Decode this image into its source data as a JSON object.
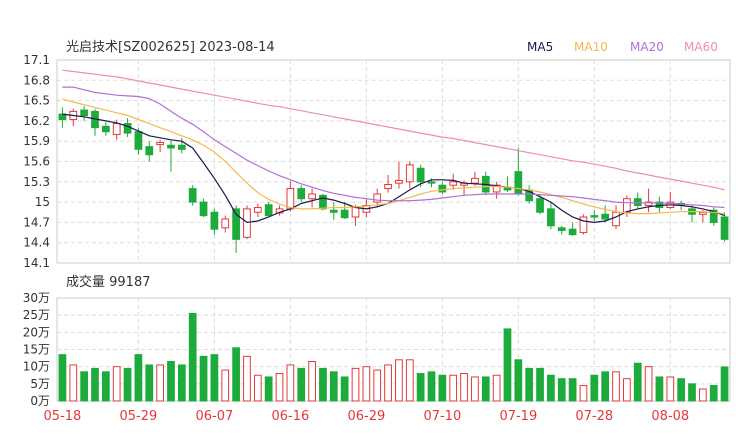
{
  "header": {
    "title": "光启技术[SZ002625] 2023-08-14",
    "legend": [
      {
        "label": "MA5",
        "color": "#1a1a4e"
      },
      {
        "label": "MA10",
        "color": "#f5b94e"
      },
      {
        "label": "MA20",
        "color": "#b06fd6"
      },
      {
        "label": "MA60",
        "color": "#ec8cb9"
      }
    ]
  },
  "colors": {
    "up": "#e23a3a",
    "down": "#1dab3b",
    "grid": "#dddddd",
    "axis_text": "#333333",
    "xaxis_text": "#e23a3a"
  },
  "volume_panel": {
    "label": "成交量 99187"
  },
  "chart_data": [
    {
      "type": "candlestick",
      "title": "光启技术[SZ002625] 2023-08-14",
      "ylim": [
        14.1,
        17.1
      ],
      "yticks": [
        "17.1",
        "16.8",
        "16.5",
        "16.2",
        "15.9",
        "15.6",
        "15.3",
        "15",
        "14.7",
        "14.4",
        "14.1"
      ],
      "ytick_values": [
        17.1,
        16.8,
        16.5,
        16.2,
        15.9,
        15.6,
        15.3,
        15.0,
        14.7,
        14.4,
        14.1
      ],
      "grid": true,
      "x_labels": [
        {
          "label": "05-18",
          "index": 0
        },
        {
          "label": "05-29",
          "index": 7
        },
        {
          "label": "06-07",
          "index": 14
        },
        {
          "label": "06-16",
          "index": 21
        },
        {
          "label": "06-29",
          "index": 28
        },
        {
          "label": "07-10",
          "index": 35
        },
        {
          "label": "07-19",
          "index": 42
        },
        {
          "label": "07-28",
          "index": 49
        },
        {
          "label": "08-08",
          "index": 56
        }
      ],
      "ohlc": [
        [
          16.3,
          16.4,
          16.1,
          16.22
        ],
        [
          16.22,
          16.38,
          16.12,
          16.34
        ],
        [
          16.36,
          16.42,
          16.2,
          16.28
        ],
        [
          16.34,
          16.38,
          15.98,
          16.1
        ],
        [
          16.12,
          16.18,
          15.98,
          16.04
        ],
        [
          16.0,
          16.22,
          15.92,
          16.16
        ],
        [
          16.16,
          16.24,
          15.96,
          16.02
        ],
        [
          16.04,
          16.1,
          15.7,
          15.78
        ],
        [
          15.82,
          15.9,
          15.6,
          15.7
        ],
        [
          15.85,
          15.92,
          15.74,
          15.88
        ],
        [
          15.84,
          15.9,
          15.45,
          15.8
        ],
        [
          15.84,
          15.95,
          15.72,
          15.78
        ],
        [
          15.2,
          15.25,
          14.95,
          15.0
        ],
        [
          15.0,
          15.05,
          14.78,
          14.8
        ],
        [
          14.85,
          14.9,
          14.52,
          14.6
        ],
        [
          14.62,
          14.8,
          14.55,
          14.75
        ],
        [
          14.9,
          14.95,
          14.25,
          14.45
        ],
        [
          14.48,
          14.95,
          14.45,
          14.9
        ],
        [
          14.85,
          14.98,
          14.78,
          14.92
        ],
        [
          14.96,
          15.0,
          14.8,
          14.8
        ],
        [
          14.84,
          14.95,
          14.8,
          14.9
        ],
        [
          14.9,
          15.3,
          14.86,
          15.2
        ],
        [
          15.2,
          15.25,
          15.0,
          15.05
        ],
        [
          15.05,
          15.2,
          14.92,
          15.12
        ],
        [
          15.1,
          15.12,
          14.88,
          14.9
        ],
        [
          14.88,
          15.0,
          14.74,
          14.85
        ],
        [
          14.88,
          15.0,
          14.75,
          14.77
        ],
        [
          14.78,
          14.96,
          14.65,
          14.92
        ],
        [
          14.85,
          15.05,
          14.78,
          14.95
        ],
        [
          15.0,
          15.2,
          14.92,
          15.12
        ],
        [
          15.2,
          15.4,
          15.14,
          15.26
        ],
        [
          15.28,
          15.6,
          15.2,
          15.32
        ],
        [
          15.3,
          15.6,
          15.2,
          15.55
        ],
        [
          15.5,
          15.55,
          15.22,
          15.3
        ],
        [
          15.3,
          15.35,
          15.22,
          15.28
        ],
        [
          15.25,
          15.3,
          15.12,
          15.15
        ],
        [
          15.25,
          15.42,
          15.18,
          15.3
        ],
        [
          15.25,
          15.32,
          15.1,
          15.28
        ],
        [
          15.28,
          15.45,
          15.24,
          15.35
        ],
        [
          15.38,
          15.45,
          15.1,
          15.15
        ],
        [
          15.15,
          15.3,
          15.05,
          15.25
        ],
        [
          15.22,
          15.38,
          15.15,
          15.18
        ],
        [
          15.45,
          15.8,
          15.1,
          15.12
        ],
        [
          15.18,
          15.25,
          14.98,
          15.02
        ],
        [
          15.05,
          15.1,
          14.82,
          14.85
        ],
        [
          14.9,
          15.0,
          14.6,
          14.65
        ],
        [
          14.62,
          14.65,
          14.52,
          14.58
        ],
        [
          14.6,
          14.7,
          14.5,
          14.52
        ],
        [
          14.55,
          14.82,
          14.52,
          14.78
        ],
        [
          14.8,
          14.88,
          14.72,
          14.78
        ],
        [
          14.82,
          14.95,
          14.7,
          14.75
        ],
        [
          14.65,
          14.95,
          14.6,
          14.85
        ],
        [
          14.85,
          15.1,
          14.78,
          15.05
        ],
        [
          15.05,
          15.14,
          14.9,
          14.95
        ],
        [
          14.95,
          15.2,
          14.85,
          15.0
        ],
        [
          15.0,
          15.08,
          14.85,
          14.92
        ],
        [
          14.92,
          15.15,
          14.9,
          15.0
        ],
        [
          14.98,
          15.02,
          14.88,
          14.95
        ],
        [
          14.9,
          14.95,
          14.7,
          14.82
        ],
        [
          14.82,
          14.88,
          14.7,
          14.85
        ],
        [
          14.88,
          14.92,
          14.65,
          14.7
        ],
        [
          14.78,
          14.85,
          14.42,
          14.45
        ]
      ],
      "ma": {
        "MA5": [
          16.3,
          16.28,
          16.26,
          16.23,
          16.2,
          16.17,
          16.12,
          16.05,
          15.98,
          15.95,
          15.92,
          15.9,
          15.8,
          15.58,
          15.35,
          15.1,
          14.82,
          14.7,
          14.72,
          14.78,
          14.85,
          14.9,
          14.98,
          15.02,
          15.06,
          15.03,
          14.98,
          14.92,
          14.9,
          14.93,
          14.98,
          15.08,
          15.18,
          15.27,
          15.33,
          15.33,
          15.32,
          15.28,
          15.27,
          15.26,
          15.24,
          15.22,
          15.2,
          15.16,
          15.08,
          15.0,
          14.88,
          14.78,
          14.72,
          14.7,
          14.72,
          14.78,
          14.86,
          14.9,
          14.93,
          14.95,
          14.96,
          14.95,
          14.93,
          14.9,
          14.86,
          14.8
        ],
        "MA10": [
          16.52,
          16.48,
          16.44,
          16.4,
          16.36,
          16.32,
          16.28,
          16.22,
          16.16,
          16.1,
          16.04,
          15.98,
          15.92,
          15.84,
          15.74,
          15.6,
          15.44,
          15.28,
          15.14,
          15.04,
          14.97,
          14.92,
          14.9,
          14.9,
          14.91,
          14.92,
          14.92,
          14.93,
          14.94,
          14.96,
          14.98,
          15.02,
          15.07,
          15.12,
          15.16,
          15.18,
          15.2,
          15.21,
          15.22,
          15.23,
          15.23,
          15.22,
          15.2,
          15.18,
          15.15,
          15.11,
          15.07,
          15.02,
          14.97,
          14.93,
          14.89,
          14.86,
          14.84,
          14.83,
          14.83,
          14.84,
          14.85,
          14.86,
          14.86,
          14.86,
          14.85,
          14.83
        ],
        "MA20": [
          16.7,
          16.7,
          16.66,
          16.62,
          16.6,
          16.58,
          16.57,
          16.56,
          16.53,
          16.45,
          16.34,
          16.24,
          16.15,
          16.04,
          15.92,
          15.82,
          15.72,
          15.62,
          15.54,
          15.46,
          15.39,
          15.33,
          15.27,
          15.22,
          15.17,
          15.13,
          15.1,
          15.07,
          15.05,
          15.03,
          15.02,
          15.02,
          15.02,
          15.03,
          15.04,
          15.06,
          15.08,
          15.1,
          15.11,
          15.12,
          15.12,
          15.12,
          15.12,
          15.12,
          15.11,
          15.1,
          15.09,
          15.08,
          15.06,
          15.04,
          15.02,
          15.0,
          14.99,
          14.99,
          14.99,
          14.99,
          14.98,
          14.97,
          14.96,
          14.95,
          14.93,
          14.92
        ],
        "MA60": [
          16.95,
          16.93,
          16.91,
          16.89,
          16.87,
          16.85,
          16.82,
          16.79,
          16.76,
          16.73,
          16.7,
          16.67,
          16.64,
          16.61,
          16.58,
          16.55,
          16.52,
          16.49,
          16.46,
          16.43,
          16.41,
          16.38,
          16.35,
          16.32,
          16.29,
          16.26,
          16.23,
          16.2,
          16.17,
          16.14,
          16.11,
          16.08,
          16.05,
          16.02,
          15.99,
          15.96,
          15.94,
          15.91,
          15.88,
          15.85,
          15.82,
          15.79,
          15.76,
          15.73,
          15.7,
          15.67,
          15.64,
          15.61,
          15.59,
          15.56,
          15.53,
          15.5,
          15.46,
          15.43,
          15.4,
          15.37,
          15.34,
          15.31,
          15.28,
          15.25,
          15.22,
          15.18
        ]
      }
    },
    {
      "type": "bar",
      "title": "成交量 99187",
      "ylim": [
        0,
        30
      ],
      "yticks": [
        "30万",
        "25万",
        "20万",
        "15万",
        "10万",
        "5万",
        "0万"
      ],
      "ytick_values": [
        30,
        25,
        20,
        15,
        10,
        5,
        0
      ],
      "unit": "万",
      "values": [
        13.5,
        10.5,
        8.5,
        9.5,
        8.5,
        10,
        9.5,
        13.5,
        10.5,
        10.5,
        11.5,
        10.5,
        25.5,
        13,
        13.5,
        9,
        15.5,
        13,
        7.5,
        7,
        8,
        10.5,
        9.5,
        11.5,
        9.5,
        8.5,
        7,
        9.5,
        10,
        9,
        10.5,
        12,
        12,
        8,
        8.5,
        7.5,
        7.5,
        8,
        7,
        7,
        7.5,
        21,
        12,
        9.5,
        9.5,
        7.5,
        6.5,
        6.5,
        4.5,
        7.5,
        8.5,
        8.5,
        6.5,
        11,
        10,
        7,
        7,
        6.5,
        5,
        3.5,
        4.5,
        9.9187
      ]
    }
  ]
}
